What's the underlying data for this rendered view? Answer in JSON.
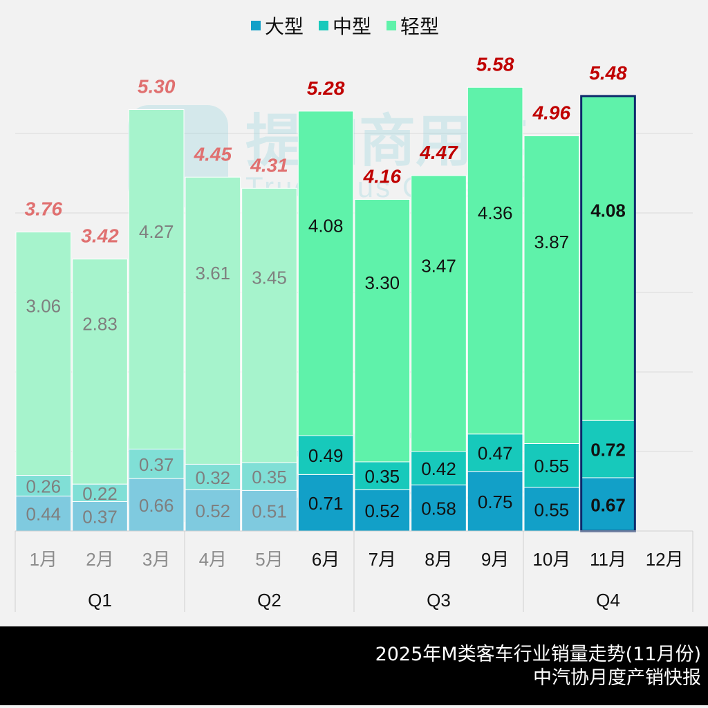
{
  "chart_data": {
    "type": "bar",
    "stacked": true,
    "categories": [
      "1月",
      "2月",
      "3月",
      "4月",
      "5月",
      "6月",
      "7月",
      "8月",
      "9月",
      "10月",
      "11月",
      "12月"
    ],
    "groups": [
      {
        "label": "Q1",
        "months": [
          "1月",
          "2月",
          "3月"
        ]
      },
      {
        "label": "Q2",
        "months": [
          "4月",
          "5月",
          "6月"
        ]
      },
      {
        "label": "Q3",
        "months": [
          "7月",
          "8月",
          "9月"
        ]
      },
      {
        "label": "Q4",
        "months": [
          "10月",
          "11月",
          "12月"
        ]
      }
    ],
    "series": [
      {
        "name": "大型",
        "color": "#12a0c8",
        "faded_color": "#7fcadf",
        "values": [
          0.44,
          0.37,
          0.66,
          0.52,
          0.51,
          0.71,
          0.52,
          0.58,
          0.75,
          0.55,
          0.67,
          null
        ]
      },
      {
        "name": "中型",
        "color": "#17c9bb",
        "faded_color": "#80dfd6",
        "values": [
          0.26,
          0.22,
          0.37,
          0.32,
          0.35,
          0.49,
          0.35,
          0.42,
          0.47,
          0.55,
          0.72,
          null
        ]
      },
      {
        "name": "轻型",
        "color": "#5ff2aa",
        "faded_color": "#a6f3cc",
        "values": [
          3.06,
          2.83,
          4.27,
          3.61,
          3.45,
          4.08,
          3.3,
          3.47,
          4.36,
          3.87,
          4.08,
          null
        ]
      }
    ],
    "totals": [
      "3.76",
      "3.42",
      "5.30",
      "4.45",
      "4.31",
      "5.28",
      "4.16",
      "4.47",
      "5.58",
      "4.96",
      "5.48",
      null
    ],
    "faded_months": [
      "1月",
      "2月",
      "3月",
      "4月",
      "5月"
    ],
    "highlight_month": "11月",
    "highlight_color": "#0d2a6b",
    "total_label_color": "#c00000",
    "faded_total_label_color": "#e07070",
    "ylim": [
      0,
      6
    ],
    "grid": true,
    "legend": "top-center"
  },
  "watermark": {
    "cn": "提加商用车",
    "en": "TruckPlus CV studio"
  },
  "footer": {
    "title": "2025年M类客车行业销量走势(11月份)",
    "source": "中汽协月度产销快报"
  }
}
